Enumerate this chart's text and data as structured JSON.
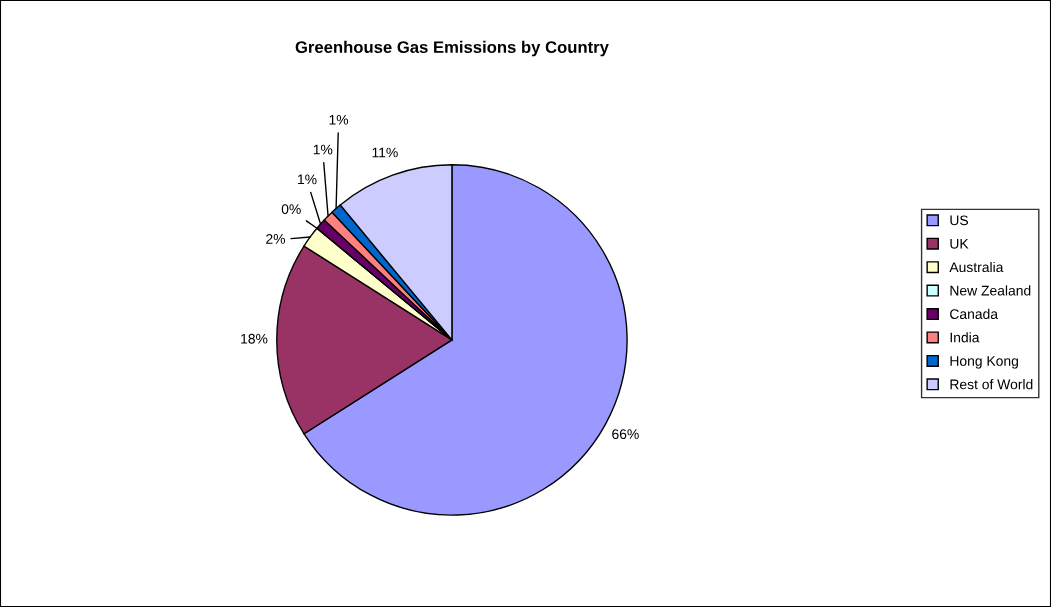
{
  "chart_data": {
    "type": "pie",
    "title": "Greenhouse Gas Emissions by Country",
    "categories": [
      "US",
      "UK",
      "Australia",
      "New Zealand",
      "Canada",
      "India",
      "Hong Kong",
      "Rest of World"
    ],
    "values": [
      66,
      18,
      2,
      0,
      1,
      1,
      1,
      11
    ],
    "colors": [
      "#9999ff",
      "#993366",
      "#ffffcc",
      "#ccffff",
      "#660066",
      "#ff8080",
      "#0066cc",
      "#ccccff"
    ],
    "value_labels": [
      "66%",
      "18%",
      "2%",
      "0%",
      "1%",
      "1%",
      "1%",
      "11%"
    ],
    "legend": "right"
  }
}
